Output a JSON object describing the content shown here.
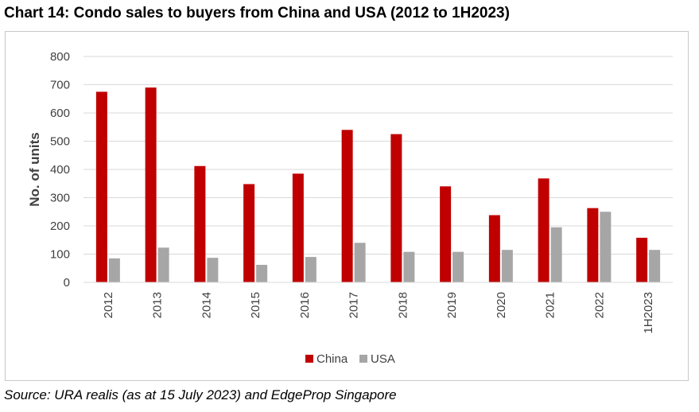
{
  "title": "Chart 14: Condo sales to buyers from China and USA (2012 to 1H2023)",
  "source": "Source: URA realis (as at 15 July 2023) and EdgeProp Singapore",
  "colors": {
    "China": "#c00000",
    "USA": "#a6a6a6",
    "grid": "#d9d9d9",
    "axis_text": "#404040"
  },
  "chart_data": {
    "type": "bar",
    "ylabel": "No. of units",
    "xlabel": "",
    "ylim": [
      0,
      800
    ],
    "yticks": [
      0,
      100,
      200,
      300,
      400,
      500,
      600,
      700,
      800
    ],
    "grid": true,
    "legend_position": "bottom",
    "categories": [
      "2012",
      "2013",
      "2014",
      "2015",
      "2016",
      "2017",
      "2018",
      "2019",
      "2020",
      "2021",
      "2022",
      "1H2023"
    ],
    "series": [
      {
        "name": "China",
        "values": [
          675,
          690,
          412,
          348,
          385,
          540,
          525,
          340,
          238,
          368,
          263,
          158
        ]
      },
      {
        "name": "USA",
        "values": [
          85,
          123,
          87,
          62,
          90,
          140,
          108,
          108,
          115,
          195,
          250,
          115
        ]
      }
    ]
  }
}
